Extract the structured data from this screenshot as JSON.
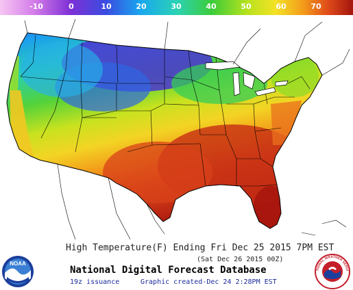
{
  "colorbar": {
    "ticks": [
      "-10",
      "0",
      "10",
      "20",
      "30",
      "40",
      "50",
      "60",
      "70"
    ],
    "colors": [
      "#f3b7f3",
      "#c86ee8",
      "#7b2fd8",
      "#3a4fe0",
      "#1ea7f0",
      "#25d7c7",
      "#3ad24a",
      "#a8e21f",
      "#f0e624",
      "#f6b31a",
      "#ef6a1c",
      "#d4311a",
      "#a91a10"
    ]
  },
  "footer": {
    "title": "High Temperature(F) Ending Fri Dec 25 2015  7PM EST",
    "valid": "(Sat Dec 26 2015 00Z)",
    "product": "National Digital Forecast Database",
    "issuance": "19z issuance",
    "created": "Graphic created-Dec 24  2:28PM EST"
  },
  "logos": {
    "noaa": "NOAA",
    "nws": "NATIONAL WEATHER SERVICE"
  },
  "legend_range": {
    "min": -10,
    "max": 70,
    "units": "F"
  }
}
